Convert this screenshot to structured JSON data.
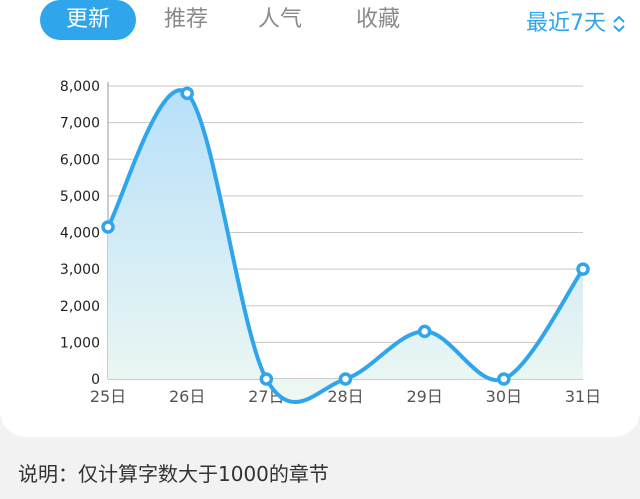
{
  "tabs": [
    {
      "label": "更新",
      "active": true
    },
    {
      "label": "推荐",
      "active": false
    },
    {
      "label": "人气",
      "active": false
    },
    {
      "label": "收藏",
      "active": false
    }
  ],
  "range_select": {
    "label": "最近7天",
    "icon": "chevron-up-down-icon"
  },
  "note": "说明：仅计算字数大于1000的章节",
  "colors": {
    "accent": "#2fa5ec",
    "fill_top": "#b8e0fa",
    "fill_bottom": "#eef8f2"
  },
  "chart_data": {
    "type": "area",
    "categories": [
      "25日",
      "26日",
      "27日",
      "28日",
      "29日",
      "30日",
      "31日"
    ],
    "values": [
      4150,
      7800,
      0,
      0,
      1300,
      0,
      3000
    ],
    "yticks": [
      0,
      1000,
      2000,
      3000,
      4000,
      5000,
      6000,
      7000,
      8000
    ],
    "ytick_labels": [
      "0",
      "1,000",
      "2,000",
      "3,000",
      "4,000",
      "5,000",
      "6,000",
      "7,000",
      "8,000"
    ],
    "ylim": [
      0,
      8000
    ],
    "grid": true,
    "smooth": true
  }
}
